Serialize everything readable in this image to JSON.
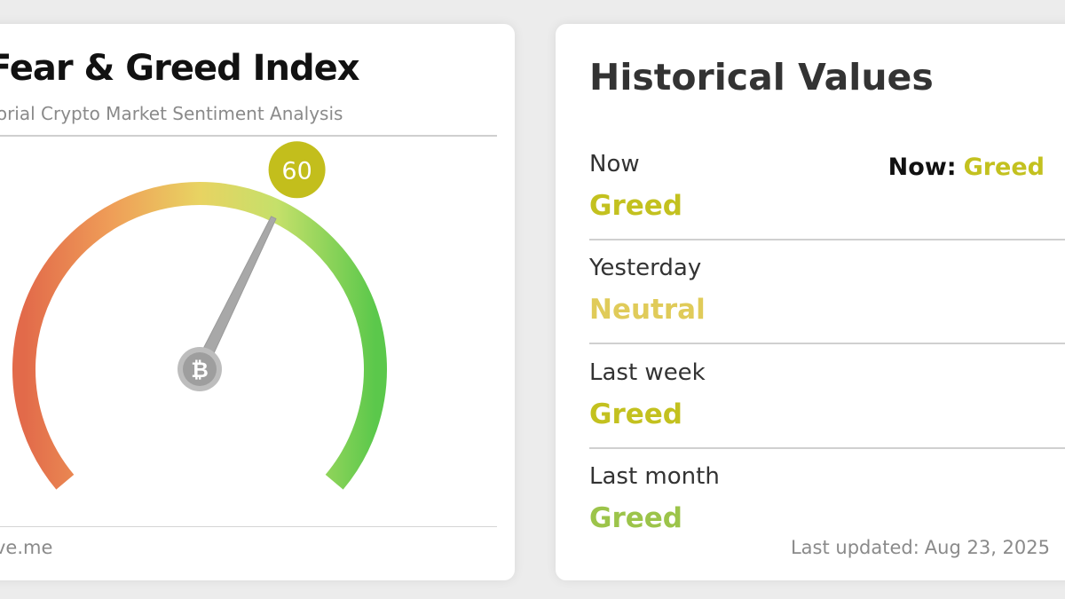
{
  "gauge_card": {
    "title": "Fear & Greed Index",
    "subtitle": "torial Crypto Market Sentiment Analysis",
    "now_label": "Now:",
    "now_value": "Greed",
    "now_color": "#c3c11f",
    "value": 60,
    "scale_min": 0,
    "scale_max": 100,
    "badge_color": "#c3be1c",
    "gauge_colors": [
      "#e26a4a",
      "#ef9e58",
      "#e8d362",
      "#c5e06a",
      "#5bc84b"
    ],
    "center_icon": "bitcoin-icon",
    "footer_left": "ve.me",
    "footer_updated_label": "Last updated:",
    "footer_updated_date": "Aug 23, 2025"
  },
  "history_card": {
    "title": "Historical Values",
    "rows": [
      {
        "label": "Now",
        "value": "Greed",
        "color": "#c3c11f"
      },
      {
        "label": "Yesterday",
        "value": "Neutral",
        "color": "#e0cb59"
      },
      {
        "label": "Last week",
        "value": "Greed",
        "color": "#c3c11f"
      },
      {
        "label": "Last month",
        "value": "Greed",
        "color": "#9cc44a"
      }
    ]
  }
}
